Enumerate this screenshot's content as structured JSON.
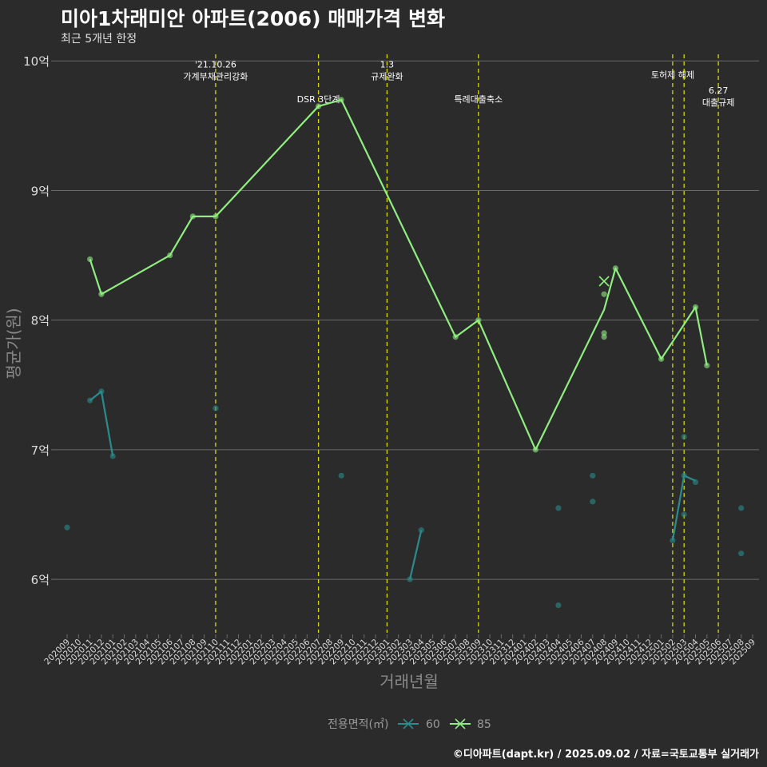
{
  "header": {
    "title": "미아1차래미안 아파트(2006) 매매가격 변화",
    "subtitle": "최근 5개년 한정"
  },
  "footer": {
    "credit": "©디아파트(dapt.kr) / 2025.09.02 / 자료=국토교통부 실거래가"
  },
  "colors": {
    "background": "#2b2b2b",
    "grid": "#6b6b6b",
    "vline": "#d8d800",
    "series_60": "#2a8c8c",
    "series_85": "#90ee80"
  },
  "chart_data": {
    "type": "line",
    "title": "미아1차래미안 아파트(2006) 매매가격 변화",
    "subtitle": "최근 5개년 한정",
    "xlabel": "거래년월",
    "ylabel": "평균가(원)",
    "ylim": [
      5.6,
      10.1
    ],
    "y_ticks": [
      {
        "value": 6,
        "label": "6억"
      },
      {
        "value": 7,
        "label": "7억"
      },
      {
        "value": 8,
        "label": "8억"
      },
      {
        "value": 9,
        "label": "9억"
      },
      {
        "value": 10,
        "label": "10억"
      }
    ],
    "x_categories": [
      "202009",
      "202010",
      "202011",
      "202012",
      "202101",
      "202102",
      "202103",
      "202104",
      "202105",
      "202106",
      "202107",
      "202108",
      "202109",
      "202110",
      "202111",
      "202112",
      "202201",
      "202202",
      "202203",
      "202204",
      "202205",
      "202206",
      "202207",
      "202208",
      "202209",
      "202210",
      "202211",
      "202212",
      "202301",
      "202302",
      "202303",
      "202304",
      "202305",
      "202306",
      "202307",
      "202308",
      "202309",
      "202310",
      "202311",
      "202312",
      "202401",
      "202402",
      "202403",
      "202404",
      "202405",
      "202406",
      "202407",
      "202408",
      "202409",
      "202410",
      "202411",
      "202412",
      "202501",
      "202502",
      "202503",
      "202504",
      "202505",
      "202506",
      "202507",
      "202508",
      "202509"
    ],
    "legend": {
      "title": "전용면적(㎡)",
      "position": "bottom"
    },
    "series": [
      {
        "name": "60",
        "color": "#2a8c8c",
        "line": [
          {
            "x": 2,
            "y": 7.38
          },
          {
            "x": 3,
            "y": 7.45
          },
          {
            "x": 4,
            "y": 6.95
          },
          {
            "x": 30,
            "y": 6.0
          },
          {
            "x": 31,
            "y": 6.38
          },
          {
            "x": 53,
            "y": 6.3
          },
          {
            "x": 54,
            "y": 6.8
          },
          {
            "x": 55,
            "y": 6.76
          }
        ],
        "points": [
          {
            "x": 0,
            "y": 6.4
          },
          {
            "x": 2,
            "y": 7.38
          },
          {
            "x": 3,
            "y": 7.45
          },
          {
            "x": 4,
            "y": 6.95
          },
          {
            "x": 13,
            "y": 7.32
          },
          {
            "x": 24,
            "y": 6.8
          },
          {
            "x": 30,
            "y": 6.0
          },
          {
            "x": 31,
            "y": 6.38
          },
          {
            "x": 43,
            "y": 6.55
          },
          {
            "x": 43,
            "y": 5.8
          },
          {
            "x": 46,
            "y": 6.8
          },
          {
            "x": 46,
            "y": 6.6
          },
          {
            "x": 53,
            "y": 6.3
          },
          {
            "x": 54,
            "y": 7.1
          },
          {
            "x": 54,
            "y": 6.8
          },
          {
            "x": 54,
            "y": 6.5
          },
          {
            "x": 55,
            "y": 6.75
          },
          {
            "x": 59,
            "y": 6.55
          },
          {
            "x": 59,
            "y": 6.2
          }
        ]
      },
      {
        "name": "85",
        "color": "#90ee80",
        "line": [
          {
            "x": 2,
            "y": 8.47
          },
          {
            "x": 3,
            "y": 8.2
          },
          {
            "x": 9,
            "y": 8.5
          },
          {
            "x": 11,
            "y": 8.8
          },
          {
            "x": 13,
            "y": 8.8
          },
          {
            "x": 22,
            "y": 9.65
          },
          {
            "x": 24,
            "y": 9.7
          },
          {
            "x": 34,
            "y": 7.87
          },
          {
            "x": 36,
            "y": 8.0
          },
          {
            "x": 41,
            "y": 7.0
          },
          {
            "x": 47,
            "y": 8.08
          },
          {
            "x": 48,
            "y": 8.4
          },
          {
            "x": 52,
            "y": 7.7
          },
          {
            "x": 55,
            "y": 8.1
          },
          {
            "x": 56,
            "y": 7.65
          }
        ],
        "points": [
          {
            "x": 2,
            "y": 8.47
          },
          {
            "x": 3,
            "y": 8.2
          },
          {
            "x": 9,
            "y": 8.5
          },
          {
            "x": 11,
            "y": 8.8
          },
          {
            "x": 13,
            "y": 8.8
          },
          {
            "x": 22,
            "y": 9.65
          },
          {
            "x": 24,
            "y": 9.7
          },
          {
            "x": 34,
            "y": 7.87
          },
          {
            "x": 36,
            "y": 8.0
          },
          {
            "x": 41,
            "y": 7.0
          },
          {
            "x": 47,
            "y": 8.2
          },
          {
            "x": 47,
            "y": 7.9
          },
          {
            "x": 47,
            "y": 7.87
          },
          {
            "x": 48,
            "y": 8.4
          },
          {
            "x": 52,
            "y": 7.7
          },
          {
            "x": 55,
            "y": 8.1
          },
          {
            "x": 56,
            "y": 7.65
          }
        ],
        "cross_markers": [
          {
            "x": 47,
            "y": 8.3
          }
        ]
      }
    ],
    "event_lines": [
      {
        "x": 13,
        "lines": [
          "'21.10.26",
          "가계부채관리강화"
        ],
        "label_y": 9.95
      },
      {
        "x": 22,
        "lines": [
          "DSR 3단계"
        ],
        "label_y": 9.68
      },
      {
        "x": 28,
        "lines": [
          "1.3",
          "규제완화"
        ],
        "label_y": 9.95
      },
      {
        "x": 36,
        "lines": [
          "특례대출축소"
        ],
        "label_y": 9.68
      },
      {
        "x": 53,
        "lines": [
          "토허제 해제"
        ],
        "label_y": 9.87
      },
      {
        "x": 54,
        "lines": [],
        "label_y": 9.87
      },
      {
        "x": 57,
        "lines": [
          "6.27",
          "대출규제"
        ],
        "label_y": 9.75
      }
    ]
  }
}
